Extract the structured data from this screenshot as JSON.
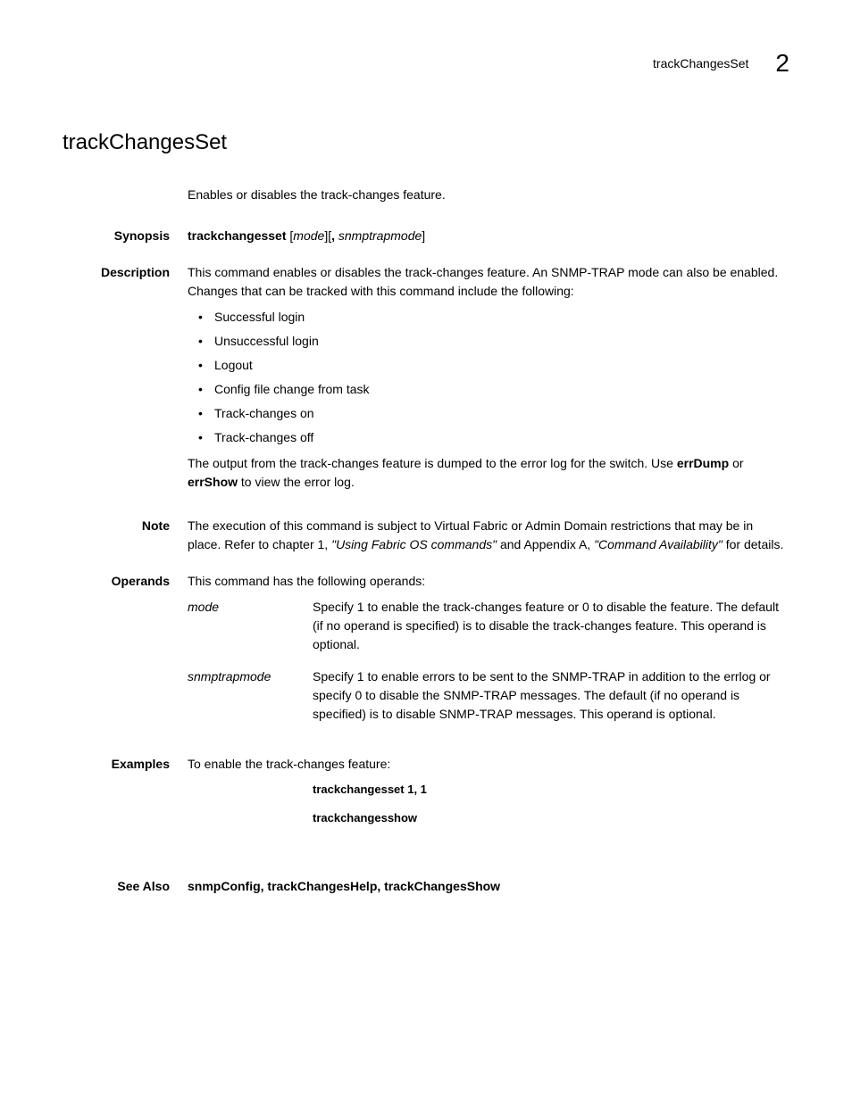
{
  "header": {
    "breadcrumb": "trackChangesSet",
    "chapter_num": "2"
  },
  "title": "trackChangesSet",
  "intro": "Enables or disables the track-changes feature.",
  "synopsis": {
    "label": "Synopsis",
    "cmd": "trackchangesset",
    "arg1": "mode",
    "sep": "][",
    "comma": ", ",
    "arg2": "snmptrapmode"
  },
  "description": {
    "label": "Description",
    "text1": "This command enables or disables the track-changes feature. An SNMP-TRAP mode can also be enabled. Changes that can be tracked with this command include the following:",
    "items": [
      "Successful login",
      "Unsuccessful login",
      "Logout",
      "Config file change from task",
      "Track-changes on",
      "Track-changes off"
    ],
    "text2_a": "The output from the track-changes feature is dumped to the error log for the switch. Use ",
    "text2_b": "errDump",
    "text2_c": " or ",
    "text2_d": "errShow",
    "text2_e": " to view the error log."
  },
  "note": {
    "label": "Note",
    "text_a": "The execution of this command is subject to Virtual Fabric or Admin Domain restrictions that may be in place. Refer to chapter 1, ",
    "text_b": "\"Using Fabric OS commands\"",
    "text_c": " and Appendix A, ",
    "text_d": "\"Command Availability\"",
    "text_e": " for details."
  },
  "operands": {
    "label": "Operands",
    "intro": "This command has the following operands:",
    "rows": [
      {
        "name": "mode",
        "desc": "Specify 1 to enable the track-changes feature or 0 to disable the feature. The default (if no operand is specified) is to disable the track-changes feature. This operand is optional."
      },
      {
        "name": "snmptrapmode",
        "desc": "Specify 1 to enable errors to be sent to the SNMP-TRAP in addition to the errlog or specify 0 to disable the SNMP-TRAP messages. The default (if no operand is specified) is to disable SNMP-TRAP messages. This operand is optional."
      }
    ]
  },
  "examples": {
    "label": "Examples",
    "intro": "To enable the track-changes feature:",
    "code": [
      "trackchangesset 1, 1",
      "trackchangesshow"
    ]
  },
  "seealso": {
    "label": "See Also",
    "text": "snmpConfig, trackChangesHelp, trackChangesShow"
  }
}
